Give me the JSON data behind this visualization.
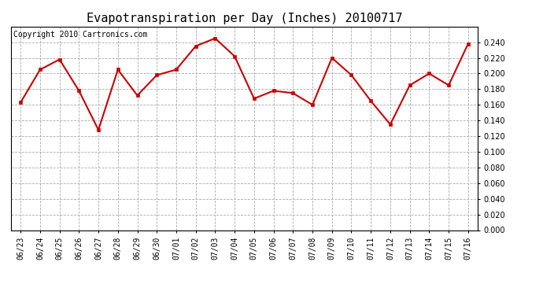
{
  "title": "Evapotranspiration per Day (Inches) 20100717",
  "copyright": "Copyright 2010 Cartronics.com",
  "dates": [
    "06/23",
    "06/24",
    "06/25",
    "06/26",
    "06/27",
    "06/28",
    "06/29",
    "06/30",
    "07/01",
    "07/02",
    "07/03",
    "07/04",
    "07/05",
    "07/06",
    "07/07",
    "07/08",
    "07/09",
    "07/10",
    "07/11",
    "07/12",
    "07/13",
    "07/14",
    "07/15",
    "07/16"
  ],
  "values": [
    0.163,
    0.205,
    0.218,
    0.178,
    0.128,
    0.205,
    0.172,
    0.198,
    0.205,
    0.235,
    0.245,
    0.222,
    0.168,
    0.178,
    0.175,
    0.16,
    0.22,
    0.198,
    0.165,
    0.135,
    0.185,
    0.2,
    0.185,
    0.238
  ],
  "line_color": "#cc0000",
  "marker_color": "#cc0000",
  "marker": "s",
  "marker_size": 3,
  "line_width": 1.5,
  "ylim": [
    0.0,
    0.26
  ],
  "yticks": [
    0.0,
    0.02,
    0.04,
    0.06,
    0.08,
    0.1,
    0.12,
    0.14,
    0.16,
    0.18,
    0.2,
    0.22,
    0.24
  ],
  "background_color": "#ffffff",
  "plot_background": "#ffffff",
  "grid_color": "#aaaaaa",
  "grid_style": "--",
  "title_fontsize": 11,
  "copyright_fontsize": 7,
  "tick_fontsize": 7,
  "figwidth": 6.9,
  "figheight": 3.75,
  "dpi": 100
}
